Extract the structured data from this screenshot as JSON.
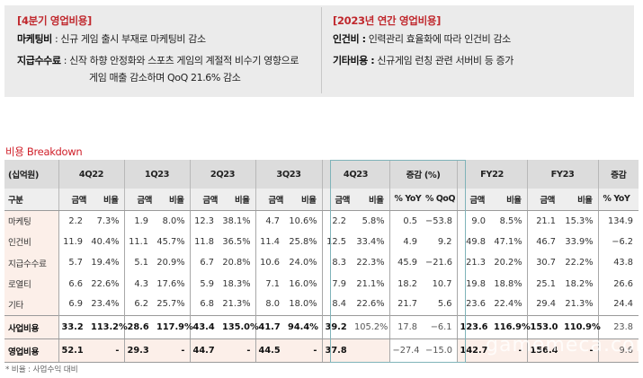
{
  "summary": {
    "left": {
      "title": "[4분기 영업비용]",
      "lines": [
        {
          "key": "마케팅비",
          "sep": " : ",
          "text": "신규 게임 출시 부재로 마케팅비 감소"
        },
        {
          "key": "지급수수료",
          "sep": " : ",
          "text": "신작 하향 안정화와 스포츠 게임의 계절적 비수기 영향으로"
        }
      ],
      "continuation": "게임 매출 감소하며 QoQ 21.6% 감소"
    },
    "right": {
      "title": "[2023년 연간 영업비용]",
      "lines": [
        {
          "key": "인건비 :",
          "sep": " ",
          "text": "인력관리 효율화에 따라 인건비 감소"
        },
        {
          "key": "기타비용 :",
          "sep": " ",
          "text": "신규게임 런칭 관련 서버비 등 증가"
        }
      ]
    }
  },
  "section_title": "비용 Breakdown",
  "table": {
    "unit_label": "(십억원)",
    "group_headers": [
      "4Q22",
      "1Q23",
      "2Q23",
      "3Q23",
      "4Q23",
      "증감 (%)",
      "FY22",
      "FY23",
      "증감"
    ],
    "sub_label": "구분",
    "sub_headers": {
      "amount": "금액",
      "ratio": "비율",
      "yoy": "% YoY",
      "qoq": "% QoQ"
    },
    "rows": [
      {
        "label": "마케팅",
        "values": [
          "2.2",
          "7.3%",
          "1.9",
          "8.0%",
          "12.3",
          "38.1%",
          "4.7",
          "10.6%",
          "2.2",
          "5.8%",
          "0.5",
          "−53.8",
          "9.0",
          "8.5%",
          "21.1",
          "15.3%",
          "134.9"
        ]
      },
      {
        "label": "인건비",
        "values": [
          "11.9",
          "40.4%",
          "11.1",
          "45.7%",
          "11.8",
          "36.5%",
          "11.4",
          "25.8%",
          "12.5",
          "33.4%",
          "4.9",
          "9.2",
          "49.8",
          "47.1%",
          "46.7",
          "33.9%",
          "−6.2"
        ]
      },
      {
        "label": "지급수수료",
        "values": [
          "5.7",
          "19.4%",
          "5.1",
          "20.9%",
          "6.7",
          "20.8%",
          "10.6",
          "24.0%",
          "8.3",
          "22.3%",
          "45.9",
          "−21.6",
          "21.3",
          "20.2%",
          "30.7",
          "22.2%",
          "43.8"
        ]
      },
      {
        "label": "로열티",
        "values": [
          "6.6",
          "22.6%",
          "4.3",
          "17.6%",
          "5.9",
          "18.3%",
          "7.1",
          "16.0%",
          "7.9",
          "21.1%",
          "18.2",
          "10.7",
          "19.8",
          "18.8%",
          "25.1",
          "18.2%",
          "26.6"
        ]
      },
      {
        "label": "기타",
        "values": [
          "6.9",
          "23.4%",
          "6.2",
          "25.7%",
          "6.8",
          "21.3%",
          "8.0",
          "18.0%",
          "8.4",
          "22.6%",
          "21.7",
          "5.6",
          "23.6",
          "22.4%",
          "29.4",
          "21.3%",
          "24.4"
        ]
      }
    ],
    "subtotal": {
      "label": "사업비용",
      "values": [
        "33.2",
        "113.2%",
        "28.6",
        "117.9%",
        "43.4",
        "135.0%",
        "41.7",
        "94.4%",
        "39.2",
        "105.2%",
        "17.8",
        "−6.1",
        "123.6",
        "116.9%",
        "153.0",
        "110.9%",
        "23.8"
      ]
    },
    "operating": {
      "label": "영업비용",
      "values": [
        "52.1",
        "-",
        "29.3",
        "-",
        "44.7",
        "-",
        "44.5",
        "-",
        "37.8",
        "",
        "−27.4",
        "−15.0",
        "142.7",
        "-",
        "156.4",
        "-",
        "9.6"
      ]
    }
  },
  "footnote": "* 비율 : 사업수익 대비",
  "watermark": "gamemeca.com",
  "colors": {
    "accent_red": "#c0282d",
    "summary_bg": "#ebebeb",
    "header_bg": "#dcdcdc",
    "subheader_bg": "#eeeeee",
    "row_label_bg": "#fcefe9",
    "highlight_border": "#7fb3b9"
  }
}
